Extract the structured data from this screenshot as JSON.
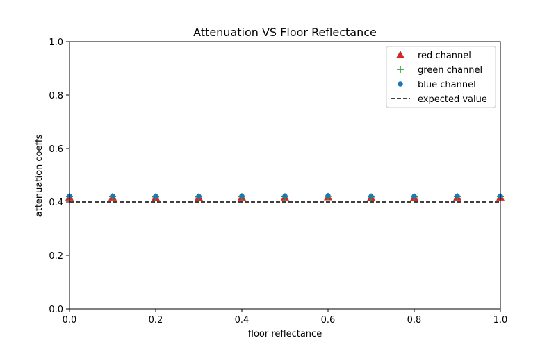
{
  "chart_data": {
    "type": "scatter",
    "title": "Attenuation VS Floor Reflectance",
    "xlabel": "floor reflectance",
    "ylabel": "attenuation coeffs",
    "xlim": [
      0.0,
      1.0
    ],
    "ylim": [
      0.0,
      1.0
    ],
    "xticks": [
      "0.0",
      "0.2",
      "0.4",
      "0.6",
      "0.8",
      "1.0"
    ],
    "yticks": [
      "0.0",
      "0.2",
      "0.4",
      "0.6",
      "0.8",
      "1.0"
    ],
    "grid": false,
    "legend_position": "top-right",
    "x": [
      0.0,
      0.1,
      0.2,
      0.3,
      0.4,
      0.5,
      0.6,
      0.7,
      0.8,
      0.9,
      1.0
    ],
    "series": [
      {
        "name": "red channel",
        "marker": "triangle",
        "color": "#d62728",
        "values": [
          0.418,
          0.418,
          0.417,
          0.417,
          0.418,
          0.418,
          0.419,
          0.417,
          0.417,
          0.418,
          0.418
        ]
      },
      {
        "name": "green channel",
        "marker": "plus",
        "color": "#2ca02c",
        "values": [
          0.42,
          0.42,
          0.419,
          0.419,
          0.42,
          0.42,
          0.421,
          0.419,
          0.419,
          0.42,
          0.42
        ]
      },
      {
        "name": "blue channel",
        "marker": "circle",
        "color": "#1f77b4",
        "values": [
          0.422,
          0.422,
          0.421,
          0.421,
          0.422,
          0.422,
          0.423,
          0.421,
          0.421,
          0.422,
          0.422
        ]
      }
    ],
    "reference_line": {
      "name": "expected value",
      "y": 0.4,
      "color": "#000000",
      "style": "dashed"
    }
  }
}
